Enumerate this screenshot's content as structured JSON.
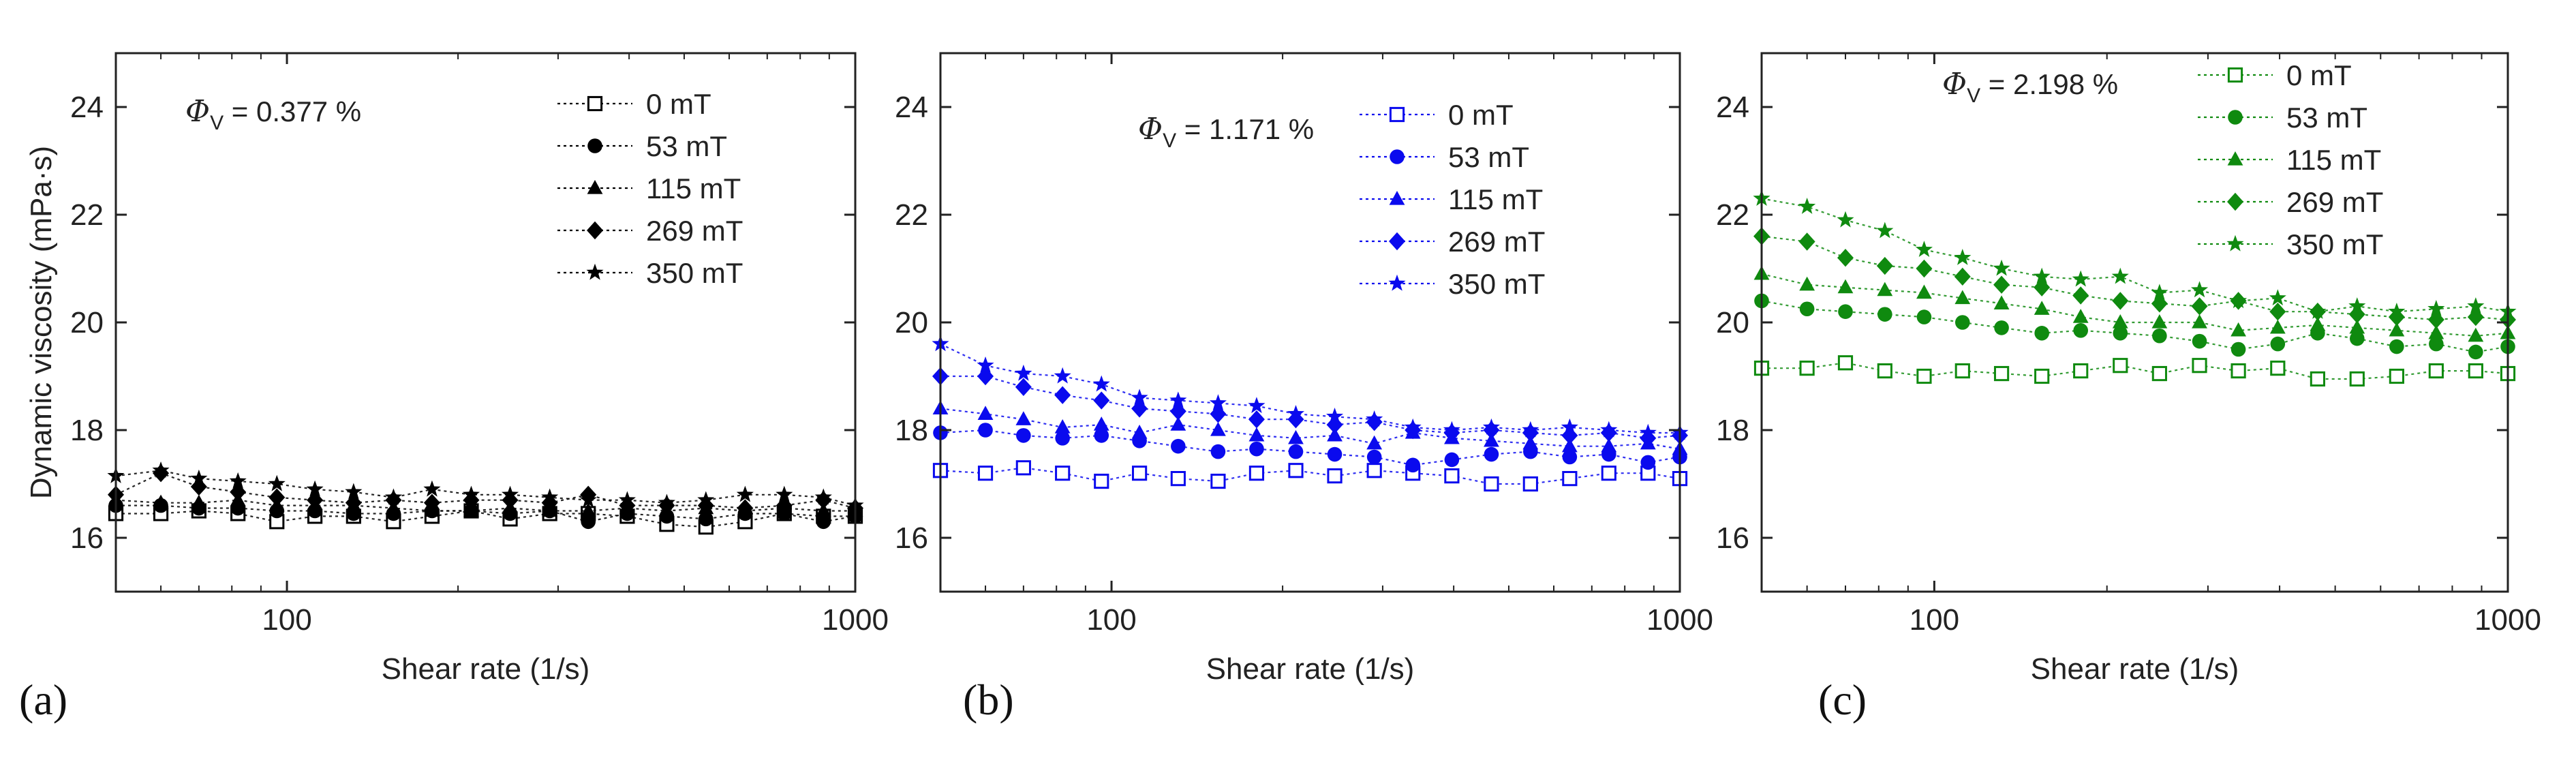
{
  "colors": {
    "axis": "#222222",
    "panel_a": "#000000",
    "panel_b": "#0a0aee",
    "panel_c": "#0f8a0f"
  },
  "chart_data": [
    {
      "type": "line",
      "panel_label": "(a)",
      "xlabel": "Shear rate (1/s)",
      "ylabel": "Dynamic viscosity (mPa·s)",
      "xscale": "log",
      "xlim": [
        50,
        1000
      ],
      "ylim": [
        15,
        25
      ],
      "yticks": [
        "16",
        "18",
        "20",
        "22",
        "24"
      ],
      "xticks": [
        "100",
        "1000"
      ],
      "annotation": {
        "symbol": "Φ",
        "subscript": "V",
        "text": " = 0.377 %"
      },
      "color": "#000000",
      "legend_position": "top-right",
      "x": [
        50,
        60,
        70,
        82,
        96,
        112,
        131,
        154,
        180,
        211,
        247,
        290,
        339,
        397,
        466,
        546,
        640,
        750,
        879,
        1000
      ],
      "series": [
        {
          "name": "0 mT",
          "marker": "square-open",
          "values": [
            16.45,
            16.45,
            16.5,
            16.45,
            16.3,
            16.4,
            16.4,
            16.3,
            16.4,
            16.5,
            16.35,
            16.45,
            16.45,
            16.4,
            16.25,
            16.2,
            16.3,
            16.45,
            16.4,
            16.4
          ]
        },
        {
          "name": "53 mT",
          "marker": "circle",
          "values": [
            16.6,
            16.6,
            16.55,
            16.55,
            16.5,
            16.5,
            16.45,
            16.45,
            16.5,
            16.5,
            16.45,
            16.5,
            16.3,
            16.45,
            16.4,
            16.35,
            16.45,
            16.45,
            16.3,
            16.4
          ]
        },
        {
          "name": "115 mT",
          "marker": "triangle",
          "values": [
            16.7,
            16.65,
            16.65,
            16.7,
            16.6,
            16.6,
            16.6,
            16.55,
            16.5,
            16.5,
            16.55,
            16.5,
            16.5,
            16.55,
            16.5,
            16.55,
            16.5,
            16.55,
            16.5,
            16.5
          ]
        },
        {
          "name": "269 mT",
          "marker": "diamond",
          "values": [
            16.8,
            17.2,
            16.95,
            16.85,
            16.75,
            16.7,
            16.65,
            16.7,
            16.65,
            16.7,
            16.7,
            16.65,
            16.8,
            16.6,
            16.6,
            16.6,
            16.55,
            16.6,
            16.7,
            16.55
          ]
        },
        {
          "name": "350 mT",
          "marker": "star",
          "values": [
            17.15,
            17.25,
            17.1,
            17.05,
            17.0,
            16.9,
            16.85,
            16.75,
            16.9,
            16.8,
            16.8,
            16.75,
            16.7,
            16.7,
            16.65,
            16.7,
            16.8,
            16.8,
            16.75,
            16.6
          ]
        }
      ]
    },
    {
      "type": "line",
      "panel_label": "(b)",
      "xlabel": "Shear rate (1/s)",
      "ylabel": "",
      "xscale": "log",
      "xlim": [
        50,
        1000
      ],
      "ylim": [
        15,
        25
      ],
      "yticks": [
        "16",
        "18",
        "20",
        "22",
        "24"
      ],
      "xticks": [
        "100",
        "1000"
      ],
      "annotation": {
        "symbol": "Φ",
        "subscript": "V",
        "text": " = 1.171 %"
      },
      "color": "#0a0aee",
      "legend_position": "top-right",
      "x": [
        50,
        60,
        70,
        82,
        96,
        112,
        131,
        154,
        180,
        211,
        247,
        290,
        339,
        397,
        466,
        546,
        640,
        750,
        879,
        1000
      ],
      "series": [
        {
          "name": "0 mT",
          "marker": "square-open",
          "values": [
            17.25,
            17.2,
            17.3,
            17.2,
            17.05,
            17.2,
            17.1,
            17.05,
            17.2,
            17.25,
            17.15,
            17.25,
            17.2,
            17.15,
            17.0,
            17.0,
            17.1,
            17.2,
            17.2,
            17.1
          ]
        },
        {
          "name": "53 mT",
          "marker": "circle",
          "values": [
            17.95,
            18.0,
            17.9,
            17.85,
            17.9,
            17.8,
            17.7,
            17.6,
            17.65,
            17.6,
            17.55,
            17.5,
            17.35,
            17.45,
            17.55,
            17.6,
            17.5,
            17.55,
            17.4,
            17.5
          ]
        },
        {
          "name": "115 mT",
          "marker": "triangle",
          "values": [
            18.4,
            18.3,
            18.2,
            18.05,
            18.1,
            17.95,
            18.1,
            18.0,
            17.9,
            17.85,
            17.9,
            17.75,
            17.95,
            17.85,
            17.8,
            17.75,
            17.7,
            17.7,
            17.75,
            17.65
          ]
        },
        {
          "name": "269 mT",
          "marker": "diamond",
          "values": [
            19.0,
            19.0,
            18.8,
            18.65,
            18.55,
            18.4,
            18.35,
            18.3,
            18.2,
            18.2,
            18.1,
            18.15,
            18.0,
            17.95,
            18.0,
            17.95,
            17.9,
            17.95,
            17.85,
            17.9
          ]
        },
        {
          "name": "350 mT",
          "marker": "star",
          "values": [
            19.6,
            19.2,
            19.05,
            19.0,
            18.85,
            18.6,
            18.55,
            18.5,
            18.45,
            18.3,
            18.25,
            18.2,
            18.05,
            18.0,
            18.05,
            18.0,
            18.05,
            18.0,
            17.95,
            17.95
          ]
        }
      ]
    },
    {
      "type": "line",
      "panel_label": "(c)",
      "xlabel": "Shear rate (1/s)",
      "ylabel": "",
      "xscale": "log",
      "xlim": [
        50,
        1000
      ],
      "ylim": [
        15,
        25
      ],
      "yticks": [
        "16",
        "18",
        "20",
        "22",
        "24"
      ],
      "xticks": [
        "100",
        "1000"
      ],
      "annotation": {
        "symbol": "Φ",
        "subscript": "V",
        "text": " = 2.198 %"
      },
      "color": "#0f8a0f",
      "legend_position": "top-right",
      "x": [
        50,
        60,
        70,
        82,
        96,
        112,
        131,
        154,
        180,
        211,
        247,
        290,
        339,
        397,
        466,
        546,
        640,
        750,
        879,
        1000
      ],
      "series": [
        {
          "name": "0 mT",
          "marker": "square-open",
          "values": [
            19.15,
            19.15,
            19.25,
            19.1,
            19.0,
            19.1,
            19.05,
            19.0,
            19.1,
            19.2,
            19.05,
            19.2,
            19.1,
            19.15,
            18.95,
            18.95,
            19.0,
            19.1,
            19.1,
            19.05
          ]
        },
        {
          "name": "53 mT",
          "marker": "circle",
          "values": [
            20.4,
            20.25,
            20.2,
            20.15,
            20.1,
            20.0,
            19.9,
            19.8,
            19.85,
            19.8,
            19.75,
            19.65,
            19.5,
            19.6,
            19.8,
            19.7,
            19.55,
            19.6,
            19.45,
            19.55
          ]
        },
        {
          "name": "115 mT",
          "marker": "triangle",
          "values": [
            20.9,
            20.7,
            20.65,
            20.6,
            20.55,
            20.45,
            20.35,
            20.25,
            20.1,
            20.0,
            20.0,
            20.0,
            19.85,
            19.9,
            19.95,
            19.9,
            19.85,
            19.8,
            19.75,
            19.8
          ]
        },
        {
          "name": "269 mT",
          "marker": "diamond",
          "values": [
            21.6,
            21.5,
            21.2,
            21.05,
            21.0,
            20.85,
            20.7,
            20.65,
            20.5,
            20.4,
            20.35,
            20.3,
            20.4,
            20.2,
            20.2,
            20.15,
            20.1,
            20.05,
            20.1,
            20.05
          ]
        },
        {
          "name": "350 mT",
          "marker": "star",
          "values": [
            22.3,
            22.15,
            21.9,
            21.7,
            21.35,
            21.2,
            21.0,
            20.85,
            20.8,
            20.85,
            20.55,
            20.6,
            20.4,
            20.45,
            20.2,
            20.3,
            20.2,
            20.25,
            20.3,
            20.2
          ]
        }
      ]
    }
  ]
}
